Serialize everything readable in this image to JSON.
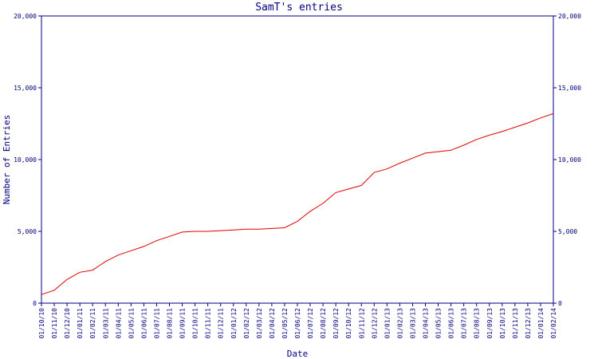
{
  "chart_data": {
    "type": "line",
    "title": "SamT's entries",
    "xlabel": "Date",
    "ylabel": "Number of Entries",
    "ylim": [
      0,
      20000
    ],
    "y_ticks": [
      {
        "value": 0,
        "label": "0"
      },
      {
        "value": 5000,
        "label": "5,000"
      },
      {
        "value": 10000,
        "label": "10,000"
      },
      {
        "value": 15000,
        "label": "15,000"
      },
      {
        "value": 20000,
        "label": "20,000"
      }
    ],
    "categories": [
      "01/10/10",
      "01/11/10",
      "01/12/10",
      "01/01/11",
      "01/02/11",
      "01/03/11",
      "01/04/11",
      "01/05/11",
      "01/06/11",
      "01/07/11",
      "01/08/11",
      "01/09/11",
      "01/10/11",
      "01/11/11",
      "01/12/11",
      "01/01/12",
      "01/02/12",
      "01/03/12",
      "01/04/12",
      "01/05/12",
      "01/06/12",
      "01/07/12",
      "01/08/12",
      "01/09/12",
      "01/10/12",
      "01/11/12",
      "01/12/12",
      "01/01/13",
      "01/02/13",
      "01/03/13",
      "01/04/13",
      "01/05/13",
      "01/06/13",
      "01/07/13",
      "01/08/13",
      "01/09/13",
      "01/10/13",
      "01/11/13",
      "01/12/13",
      "01/01/14",
      "01/02/14"
    ],
    "grid": false,
    "series": [
      {
        "color": "#e00000",
        "values": [
          600,
          900,
          1650,
          2150,
          2300,
          2900,
          3350,
          3650,
          3950,
          4350,
          4650,
          4950,
          5000,
          5000,
          5050,
          5100,
          5150,
          5150,
          5200,
          5250,
          5700,
          6400,
          6950,
          7700,
          7950,
          8200,
          9100,
          9350,
          9750,
          10100,
          10450,
          10550,
          10650,
          11000,
          11400,
          11700,
          11950,
          12250,
          12550,
          12900,
          13200
        ]
      }
    ]
  }
}
